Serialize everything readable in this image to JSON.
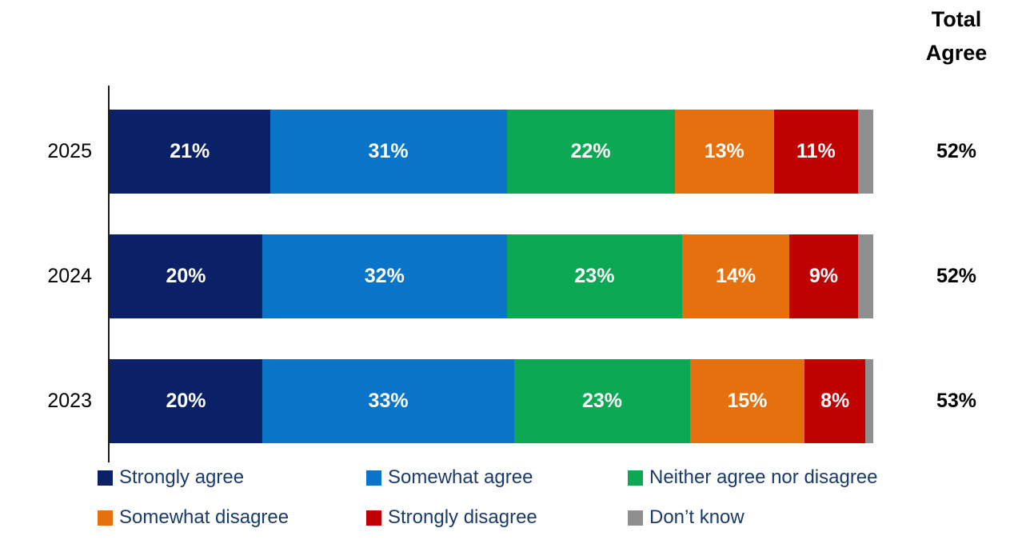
{
  "chart_data": {
    "type": "bar",
    "stacked": true,
    "orientation": "horizontal",
    "x_range": [
      0,
      100
    ],
    "unit": "%",
    "grid": false,
    "legend_position": "bottom",
    "categories": [
      "2025",
      "2024",
      "2023"
    ],
    "series": [
      {
        "name": "Strongly agree",
        "color": "#0a2167",
        "values": [
          21,
          20,
          20
        ],
        "show_labels": true
      },
      {
        "name": "Somewhat agree",
        "color": "#0a75c8",
        "values": [
          31,
          32,
          33
        ],
        "show_labels": true
      },
      {
        "name": "Neither agree nor disagree",
        "color": "#0ca853",
        "values": [
          22,
          23,
          23
        ],
        "show_labels": true
      },
      {
        "name": "Somewhat disagree",
        "color": "#e6700e",
        "values": [
          13,
          14,
          15
        ],
        "show_labels": true
      },
      {
        "name": "Strongly disagree",
        "color": "#c00101",
        "values": [
          11,
          9,
          8
        ],
        "show_labels": true
      },
      {
        "name": "Don’t know",
        "color": "#8f8f8f",
        "values": [
          2,
          2,
          1
        ],
        "show_labels": false
      }
    ],
    "totals": {
      "header": "Total Agree",
      "values": [
        "52%",
        "52%",
        "53%"
      ]
    }
  }
}
